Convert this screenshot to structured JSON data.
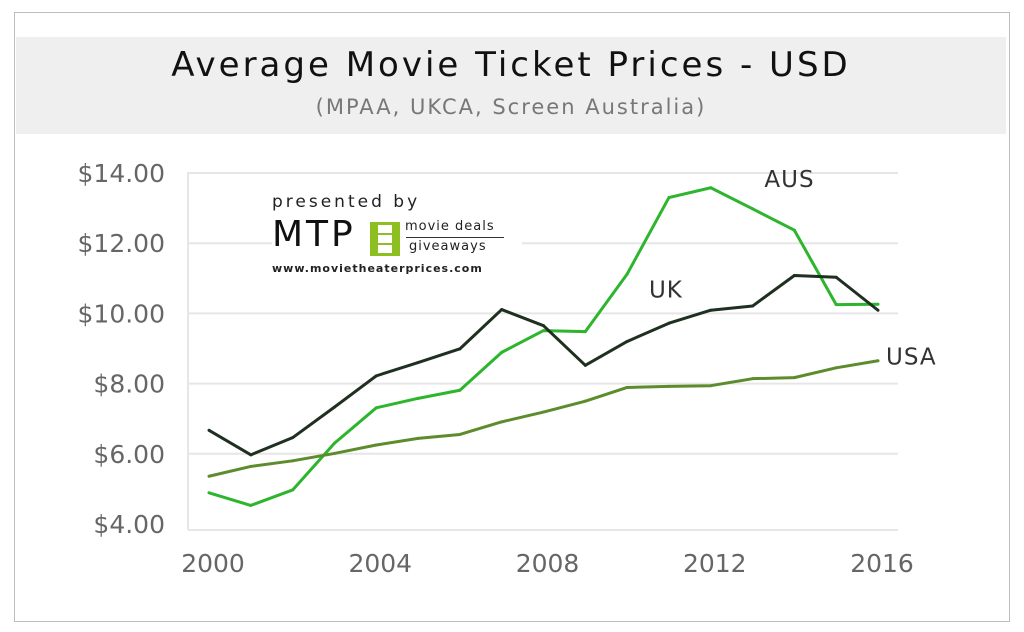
{
  "chart_data": {
    "type": "line",
    "title": "Average Movie Ticket Prices - USD",
    "subtitle": "(MPAA, UKCA, Screen Australia)",
    "x": [
      2000,
      2001,
      2002,
      2003,
      2004,
      2005,
      2006,
      2007,
      2008,
      2009,
      2010,
      2011,
      2012,
      2013,
      2014,
      2015,
      2016
    ],
    "x_ticks": [
      "2000",
      "2004",
      "2008",
      "2012",
      "2016"
    ],
    "x_tick_values": [
      2000,
      2004,
      2008,
      2012,
      2016
    ],
    "y_ticks": [
      "$4.00",
      "$6.00",
      "$8.00",
      "$10.00",
      "$12.00",
      "$14.00"
    ],
    "y_tick_values": [
      4,
      6,
      8,
      10,
      12,
      14
    ],
    "ylim": [
      4,
      14
    ],
    "xlim": [
      2000,
      2016
    ],
    "grid": "horizontal",
    "series": [
      {
        "name": "AUS",
        "color": "#2db52d",
        "values": [
          4.89,
          4.53,
          4.97,
          6.3,
          7.31,
          7.58,
          7.81,
          8.89,
          9.51,
          9.48,
          11.12,
          13.3,
          13.58,
          12.98,
          12.37,
          10.25,
          10.26
        ]
      },
      {
        "name": "UK",
        "color": "#1f2f20",
        "values": [
          6.67,
          5.97,
          6.46,
          7.33,
          8.22,
          8.6,
          8.99,
          10.11,
          9.65,
          8.52,
          9.2,
          9.72,
          10.09,
          10.21,
          11.08,
          11.03,
          10.09
        ]
      },
      {
        "name": "USA",
        "color": "#5d8c2c",
        "values": [
          5.36,
          5.64,
          5.8,
          6.01,
          6.25,
          6.44,
          6.55,
          6.91,
          7.19,
          7.5,
          7.89,
          7.92,
          7.94,
          8.14,
          8.17,
          8.45,
          8.65
        ]
      }
    ]
  },
  "logo": {
    "presented": "presented by",
    "brand": "MTP",
    "tagline_top": "movie deals",
    "tagline_bottom": "giveaways",
    "url": "www.movietheaterprices.com"
  }
}
